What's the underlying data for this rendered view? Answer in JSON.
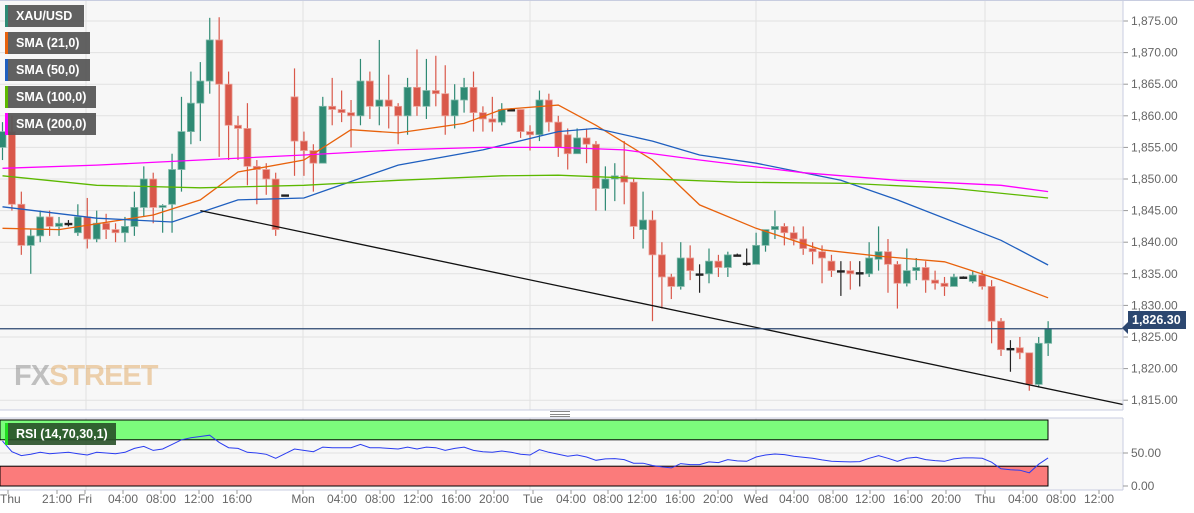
{
  "legend": [
    {
      "label": "XAU/USD",
      "color": "#2e8b75"
    },
    {
      "label": "SMA (21,0)",
      "color": "#e8620c"
    },
    {
      "label": "SMA (50,0)",
      "color": "#1f5fbf"
    },
    {
      "label": "SMA (100,0)",
      "color": "#5cb800"
    },
    {
      "label": "SMA (200,0)",
      "color": "#ff00ff"
    }
  ],
  "rsi_legend": {
    "label": "RSI (14,70,30,1)",
    "color": "#22dd22"
  },
  "current_price": "1,826.30",
  "logo": {
    "fx": "FX",
    "street": "STREET"
  },
  "colors": {
    "up": "#2f8a74",
    "down": "#d9584a",
    "rsi_line": "#2a3cf0",
    "overbought_band": "#7cfc7c",
    "oversold_band": "#fb7b7b",
    "price_line": "#2c4770",
    "trendline": "#111111"
  },
  "chart_data": {
    "type": "candlestick",
    "price_axis": {
      "min": 1815,
      "max": 1875,
      "ticks": [
        "1,815.00",
        "1,820.00",
        "1,825.00",
        "1,830.00",
        "1,835.00",
        "1,840.00",
        "1,845.00",
        "1,850.00",
        "1,855.00",
        "1,860.00",
        "1,865.00",
        "1,870.00",
        "1,875.00"
      ]
    },
    "rsi_axis": {
      "min": 0,
      "max": 100,
      "ticks": [
        "0.00",
        "50.00"
      ],
      "overbought": 70,
      "oversold": 30
    },
    "time_ticks": [
      "Thu",
      "21:00",
      "Fri",
      "04:00",
      "08:00",
      "12:00",
      "16:00",
      "Mon",
      "04:00",
      "08:00",
      "12:00",
      "16:00",
      "20:00",
      "Tue",
      "04:00",
      "08:00",
      "12:00",
      "16:00",
      "20:00",
      "Wed",
      "04:00",
      "08:00",
      "12:00",
      "16:00",
      "20:00",
      "Thu",
      "04:00",
      "08:00",
      "12:00"
    ],
    "grid": true,
    "ohlc": [
      [
        1855,
        1859,
        1853,
        1857.5
      ],
      [
        1857.5,
        1860,
        1845,
        1846
      ],
      [
        1846,
        1848,
        1838,
        1839.5
      ],
      [
        1839.5,
        1842,
        1835,
        1841
      ],
      [
        1841,
        1845,
        1840,
        1844
      ],
      [
        1844,
        1845,
        1841,
        1842.5
      ],
      [
        1842.5,
        1844,
        1841,
        1843
      ],
      [
        1843,
        1843.5,
        1842.5,
        1843
      ],
      [
        1841.5,
        1846,
        1841,
        1844
      ],
      [
        1844,
        1847,
        1839,
        1840.5
      ],
      [
        1840.5,
        1845,
        1840,
        1843
      ],
      [
        1843,
        1844.5,
        1840.5,
        1842
      ],
      [
        1842,
        1843,
        1840,
        1841.5
      ],
      [
        1841.5,
        1844,
        1840,
        1842.5
      ],
      [
        1842.5,
        1848,
        1841,
        1845.5
      ],
      [
        1845.5,
        1852,
        1844,
        1850
      ],
      [
        1850,
        1851,
        1843,
        1845.5
      ],
      [
        1845.5,
        1846,
        1841.5,
        1845.8
      ],
      [
        1846,
        1854,
        1841.5,
        1851.5
      ],
      [
        1851.5,
        1863,
        1848,
        1857.5
      ],
      [
        1857.5,
        1867,
        1855.5,
        1862
      ],
      [
        1862,
        1868.5,
        1856,
        1865.5
      ],
      [
        1865.5,
        1875.5,
        1863.5,
        1872
      ],
      [
        1872,
        1875.6,
        1853.5,
        1865
      ],
      [
        1865,
        1867,
        1853,
        1858.5
      ],
      [
        1858.5,
        1860,
        1853,
        1858
      ],
      [
        1858,
        1862,
        1849,
        1852
      ],
      [
        1852,
        1853,
        1846,
        1851.5
      ],
      [
        1851.5,
        1852.5,
        1847.5,
        1850
      ],
      [
        1850,
        1851,
        1841,
        1842
      ],
      [
        1847.5,
        1847.5,
        1847.5,
        1847.5
      ],
      [
        1863,
        1867.5,
        1850.5,
        1856
      ],
      [
        1856,
        1857.5,
        1850.5,
        1854.5
      ],
      [
        1854.5,
        1855.5,
        1848,
        1852.5
      ],
      [
        1852.5,
        1863,
        1852.5,
        1861.5
      ],
      [
        1861.5,
        1866,
        1858.5,
        1861
      ],
      [
        1861,
        1864,
        1859,
        1860.5
      ],
      [
        1860.5,
        1862.5,
        1855,
        1860
      ],
      [
        1860,
        1869,
        1858.5,
        1865.5
      ],
      [
        1865.5,
        1867,
        1859.5,
        1861.5
      ],
      [
        1861.5,
        1872,
        1858.5,
        1862.5
      ],
      [
        1862.5,
        1866.5,
        1858,
        1861.5
      ],
      [
        1861.5,
        1862,
        1855.5,
        1860
      ],
      [
        1860,
        1866,
        1857,
        1864.5
      ],
      [
        1864.5,
        1870.5,
        1860,
        1861.5
      ],
      [
        1861.5,
        1869,
        1859.5,
        1864
      ],
      [
        1864,
        1869.5,
        1861.5,
        1863.5
      ],
      [
        1863.5,
        1868,
        1857,
        1860
      ],
      [
        1860,
        1865,
        1858,
        1862.5
      ],
      [
        1862.5,
        1866,
        1860.5,
        1864.5
      ],
      [
        1864.5,
        1867,
        1857.5,
        1860.5
      ],
      [
        1860.5,
        1861.5,
        1857.5,
        1859.5
      ],
      [
        1859.5,
        1863,
        1857.5,
        1859
      ],
      [
        1859,
        1862,
        1858.5,
        1861
      ],
      [
        1861,
        1861.2,
        1860.8,
        1861
      ],
      [
        1861,
        1861,
        1856.5,
        1857.5
      ],
      [
        1857.5,
        1858.5,
        1854.5,
        1857
      ],
      [
        1857,
        1864,
        1856,
        1862.5
      ],
      [
        1862.5,
        1863.5,
        1857.5,
        1859
      ],
      [
        1859,
        1860,
        1853.5,
        1855
      ],
      [
        1857,
        1858,
        1851.5,
        1854
      ],
      [
        1854,
        1858,
        1854,
        1856.5
      ],
      [
        1856.5,
        1858,
        1852.5,
        1855.5
      ],
      [
        1855.5,
        1856,
        1845,
        1848.5
      ],
      [
        1848.5,
        1852,
        1845,
        1850
      ],
      [
        1850,
        1852.5,
        1846.5,
        1850.5
      ],
      [
        1850.5,
        1856,
        1846,
        1849.5
      ],
      [
        1849.5,
        1850,
        1840.5,
        1842.5
      ],
      [
        1842,
        1848,
        1839,
        1843.5
      ],
      [
        1843.5,
        1845,
        1827.5,
        1838
      ],
      [
        1838,
        1840,
        1829.5,
        1834.5
      ],
      [
        1834.5,
        1835,
        1831,
        1833
      ],
      [
        1833,
        1840,
        1832.5,
        1837.5
      ],
      [
        1837.5,
        1839.5,
        1834,
        1835.5
      ],
      [
        1835,
        1836.5,
        1832,
        1835
      ],
      [
        1835,
        1839,
        1833.5,
        1837
      ],
      [
        1837,
        1838,
        1834.5,
        1836
      ],
      [
        1836,
        1838.5,
        1834.5,
        1838
      ],
      [
        1838,
        1838.2,
        1837.8,
        1838
      ],
      [
        1836.5,
        1839,
        1836.3,
        1836.7
      ],
      [
        1836.5,
        1841.5,
        1836.5,
        1839.5
      ],
      [
        1839.5,
        1842,
        1838.5,
        1842
      ],
      [
        1842,
        1845,
        1840.5,
        1842.5
      ],
      [
        1842.5,
        1843,
        1839.5,
        1841.5
      ],
      [
        1841.5,
        1842.5,
        1839.5,
        1840.5
      ],
      [
        1840.5,
        1842.5,
        1838,
        1839
      ],
      [
        1839,
        1840,
        1836.5,
        1838.5
      ],
      [
        1838.5,
        1839.5,
        1833.5,
        1837.5
      ],
      [
        1837,
        1838,
        1834.5,
        1835.5
      ],
      [
        1835.5,
        1837,
        1831.5,
        1835.3
      ],
      [
        1835.5,
        1837,
        1832.5,
        1835
      ],
      [
        1835,
        1837,
        1833,
        1835.2
      ],
      [
        1835,
        1840,
        1834.5,
        1837.5
      ],
      [
        1837.3,
        1842.5,
        1835.5,
        1838.5
      ],
      [
        1838.5,
        1840.5,
        1832,
        1836.5
      ],
      [
        1836.5,
        1837,
        1829.5,
        1833.5
      ],
      [
        1833.5,
        1839,
        1833,
        1835.5
      ],
      [
        1835.5,
        1837.5,
        1834,
        1836
      ],
      [
        1836,
        1837,
        1832,
        1834
      ],
      [
        1834,
        1835.5,
        1832.5,
        1833.5
      ],
      [
        1833.5,
        1834.5,
        1831.5,
        1833
      ],
      [
        1833,
        1835,
        1833,
        1834.5
      ],
      [
        1834.5,
        1834.6,
        1834.4,
        1834.5
      ],
      [
        1833.8,
        1835.5,
        1833.5,
        1834.8
      ],
      [
        1834.8,
        1835.5,
        1832.5,
        1833
      ],
      [
        1833,
        1834,
        1824,
        1827.5
      ],
      [
        1827.5,
        1828,
        1822,
        1823
      ],
      [
        1823,
        1824.5,
        1819.5,
        1823.2
      ],
      [
        1823.3,
        1825,
        1821.5,
        1822.5
      ],
      [
        1822.5,
        1822.5,
        1816.5,
        1817.5
      ],
      [
        1817.5,
        1825,
        1817,
        1824
      ],
      [
        1824,
        1827.5,
        1822,
        1826.3
      ]
    ],
    "sma": [
      {
        "name": "SMA (21,0)",
        "color": "#e8620c",
        "points": [
          [
            0,
            1842.2
          ],
          [
            6,
            1842
          ],
          [
            16,
            1844.3
          ],
          [
            21,
            1846.7
          ],
          [
            25,
            1851.1
          ],
          [
            32,
            1853
          ],
          [
            37,
            1857.8
          ],
          [
            42,
            1857.3
          ],
          [
            49,
            1858.8
          ],
          [
            53,
            1861
          ],
          [
            59,
            1861.7
          ],
          [
            63,
            1858.5
          ],
          [
            69,
            1853
          ],
          [
            74,
            1845.9
          ],
          [
            80,
            1842.2
          ],
          [
            87,
            1838.8
          ],
          [
            93,
            1837.8
          ],
          [
            100,
            1836.9
          ],
          [
            106,
            1834
          ],
          [
            111,
            1831.2
          ]
        ]
      },
      {
        "name": "SMA (50,0)",
        "color": "#1f5fbf",
        "points": [
          [
            0,
            1845.6
          ],
          [
            10,
            1843.8
          ],
          [
            18,
            1843.2
          ],
          [
            25,
            1846.7
          ],
          [
            32,
            1847
          ],
          [
            42,
            1852.2
          ],
          [
            51,
            1854.6
          ],
          [
            59,
            1857.5
          ],
          [
            63,
            1858
          ],
          [
            69,
            1856
          ],
          [
            74,
            1853.8
          ],
          [
            80,
            1852.5
          ],
          [
            89,
            1849.8
          ],
          [
            95,
            1846.7
          ],
          [
            106,
            1840.3
          ],
          [
            111,
            1836.4
          ]
        ]
      },
      {
        "name": "SMA (100,0)",
        "color": "#5cb800",
        "points": [
          [
            0,
            1850.5
          ],
          [
            10,
            1849
          ],
          [
            21,
            1848.6
          ],
          [
            32,
            1849
          ],
          [
            42,
            1849.8
          ],
          [
            53,
            1850.5
          ],
          [
            59,
            1850.6
          ],
          [
            69,
            1850
          ],
          [
            78,
            1849.5
          ],
          [
            90,
            1849.3
          ],
          [
            101,
            1848.5
          ],
          [
            111,
            1847
          ]
        ]
      },
      {
        "name": "SMA (200,0)",
        "color": "#ff00ff",
        "points": [
          [
            0,
            1851.7
          ],
          [
            10,
            1852.2
          ],
          [
            21,
            1853
          ],
          [
            32,
            1853.8
          ],
          [
            42,
            1854.6
          ],
          [
            51,
            1855
          ],
          [
            59,
            1855
          ],
          [
            66,
            1854.6
          ],
          [
            74,
            1853
          ],
          [
            85,
            1851
          ],
          [
            95,
            1849.8
          ],
          [
            106,
            1849
          ],
          [
            111,
            1848
          ]
        ]
      }
    ],
    "trendline": [
      [
        21,
        1845
      ],
      [
        119,
        1814.3
      ]
    ],
    "current_price": 1826.3,
    "rsi": [
      68,
      52,
      46,
      48,
      51,
      49,
      50,
      51,
      49,
      47,
      51,
      50,
      49,
      51,
      57,
      60,
      54,
      56,
      63,
      70,
      73,
      75,
      77,
      66,
      58,
      57,
      51,
      50,
      48,
      42,
      49,
      56,
      54,
      52,
      59,
      58,
      58,
      58,
      63,
      58,
      58,
      57,
      56,
      59,
      56,
      59,
      58,
      54,
      57,
      59,
      54,
      52,
      51,
      53,
      51,
      48,
      47,
      55,
      51,
      48,
      45,
      47,
      44,
      39,
      41,
      41.5,
      40,
      34.5,
      34.5,
      31,
      29,
      27.5,
      34,
      32.5,
      32.5,
      36.5,
      35.5,
      40,
      38,
      37.5,
      44,
      47,
      48.5,
      47.5,
      45,
      43.5,
      42,
      39.5,
      37.5,
      37,
      36.5,
      37,
      42,
      46,
      42,
      37.5,
      42,
      43.5,
      40,
      38.5,
      37.5,
      41,
      42.5,
      42.5,
      42,
      36,
      26,
      24.5,
      24,
      20,
      33,
      42.5
    ]
  }
}
